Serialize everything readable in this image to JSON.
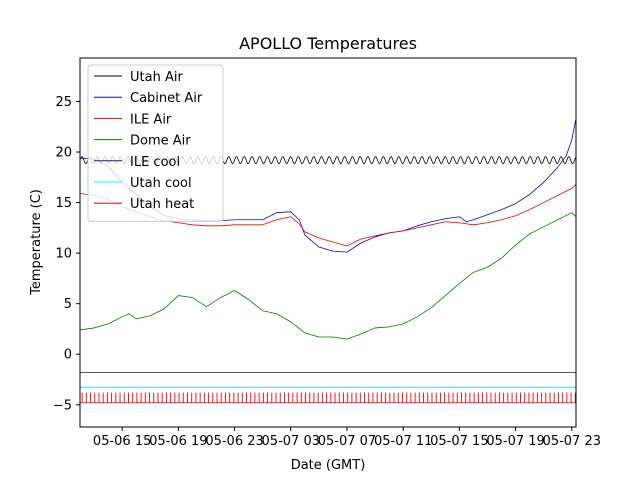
{
  "chart_data": {
    "type": "line",
    "title": "APOLLO Temperatures",
    "xlabel": "Date (GMT)",
    "ylabel": "Temperature (C)",
    "x_unit": "hours since 05-06 12:00 GMT",
    "xlim": [
      0,
      35.3
    ],
    "ylim": [
      -7.2,
      29.3
    ],
    "x_ticks": [
      {
        "value": 3,
        "label": "05-06 15"
      },
      {
        "value": 7,
        "label": "05-06 19"
      },
      {
        "value": 11,
        "label": "05-06 23"
      },
      {
        "value": 15,
        "label": "05-07 03"
      },
      {
        "value": 19,
        "label": "05-07 07"
      },
      {
        "value": 23,
        "label": "05-07 11"
      },
      {
        "value": 27,
        "label": "05-07 15"
      },
      {
        "value": 31,
        "label": "05-07 19"
      },
      {
        "value": 35,
        "label": "05-07 23"
      }
    ],
    "y_ticks": [
      {
        "value": -5,
        "label": "−5"
      },
      {
        "value": 0,
        "label": "0"
      },
      {
        "value": 5,
        "label": "5"
      },
      {
        "value": 10,
        "label": "10"
      },
      {
        "value": 15,
        "label": "15"
      },
      {
        "value": 20,
        "label": "20"
      },
      {
        "value": 25,
        "label": "25"
      }
    ],
    "legend_position": "top-left",
    "series": [
      {
        "name": "Utah Air",
        "color": "#000000",
        "style": "oscillating",
        "x": [
          0,
          35.3
        ],
        "y": [
          19.2,
          19.2
        ],
        "oscillation_amplitude": 0.35,
        "oscillation_period_hours": 0.55
      },
      {
        "name": "Cabinet Air",
        "color": "#0000ff",
        "style": "line",
        "x": [
          0,
          1,
          2,
          3,
          4,
          5,
          6,
          7,
          8,
          9,
          10,
          11,
          12,
          13,
          14,
          15,
          15.6,
          16,
          17,
          18,
          19,
          20,
          21,
          22,
          23,
          24,
          25,
          26,
          27,
          27.5,
          28,
          29,
          30,
          31,
          32,
          33,
          34,
          34.6,
          35,
          35.3
        ],
        "y": [
          19.4,
          19.3,
          18.6,
          17.0,
          15.8,
          14.6,
          13.7,
          13.4,
          13.3,
          13.2,
          13.2,
          13.3,
          13.3,
          13.3,
          14.0,
          14.1,
          13.3,
          11.8,
          10.6,
          10.2,
          10.1,
          11.0,
          11.6,
          12.0,
          12.2,
          12.7,
          13.1,
          13.4,
          13.6,
          13.1,
          13.3,
          13.8,
          14.3,
          14.9,
          15.8,
          17.0,
          18.5,
          19.6,
          21.2,
          23.3
        ]
      },
      {
        "name": "ILE Air",
        "color": "#ff0000",
        "style": "line",
        "x": [
          0,
          1,
          2,
          3,
          4,
          5,
          6,
          7,
          8,
          9,
          10,
          11,
          12,
          13,
          14,
          15,
          15.6,
          16,
          17,
          18,
          19,
          20,
          21,
          22,
          23,
          24,
          25,
          26,
          27,
          28,
          29,
          30,
          31,
          32,
          33,
          34,
          35,
          35.3
        ],
        "y": [
          15.9,
          15.7,
          15.3,
          14.6,
          14.1,
          13.6,
          13.2,
          13.0,
          12.8,
          12.7,
          12.7,
          12.8,
          12.8,
          12.8,
          13.3,
          13.6,
          12.9,
          12.1,
          11.5,
          11.1,
          10.7,
          11.4,
          11.7,
          12.0,
          12.2,
          12.5,
          12.8,
          13.1,
          13.0,
          12.8,
          13.0,
          13.3,
          13.7,
          14.3,
          15.0,
          15.7,
          16.4,
          16.8
        ]
      },
      {
        "name": "Dome Air",
        "color": "#008000",
        "style": "line",
        "x": [
          0,
          1,
          2,
          3,
          3.5,
          4,
          5,
          6,
          7,
          8,
          9,
          10,
          11,
          12,
          13,
          14,
          15,
          16,
          17,
          18,
          19,
          20,
          21,
          22,
          23,
          24,
          25,
          26,
          27,
          28,
          29,
          30,
          31,
          32,
          33,
          34,
          35,
          35.3
        ],
        "y": [
          2.4,
          2.6,
          3.0,
          3.7,
          4.0,
          3.5,
          3.8,
          4.5,
          5.8,
          5.6,
          4.7,
          5.6,
          6.3,
          5.4,
          4.3,
          4.0,
          3.2,
          2.1,
          1.7,
          1.7,
          1.5,
          2.0,
          2.6,
          2.7,
          3.0,
          3.7,
          4.6,
          5.8,
          7.0,
          8.1,
          8.6,
          9.5,
          10.8,
          11.9,
          12.6,
          13.3,
          14.0,
          13.6
        ]
      },
      {
        "name": "ILE cool",
        "color": "#191970",
        "style": "line",
        "x": [
          0,
          35.3
        ],
        "y": [
          -1.8,
          -1.8
        ]
      },
      {
        "name": "Utah cool",
        "color": "#00ffff",
        "style": "line",
        "x": [
          0,
          35.3
        ],
        "y": [
          -3.3,
          -3.3
        ]
      },
      {
        "name": "Utah heat",
        "color": "#ff0000",
        "style": "pulses",
        "x": [
          0,
          35.3
        ],
        "y": [
          -4.8,
          -4.8
        ],
        "pulse_top": -3.8,
        "pulse_interval_hours": 0.3
      }
    ]
  }
}
